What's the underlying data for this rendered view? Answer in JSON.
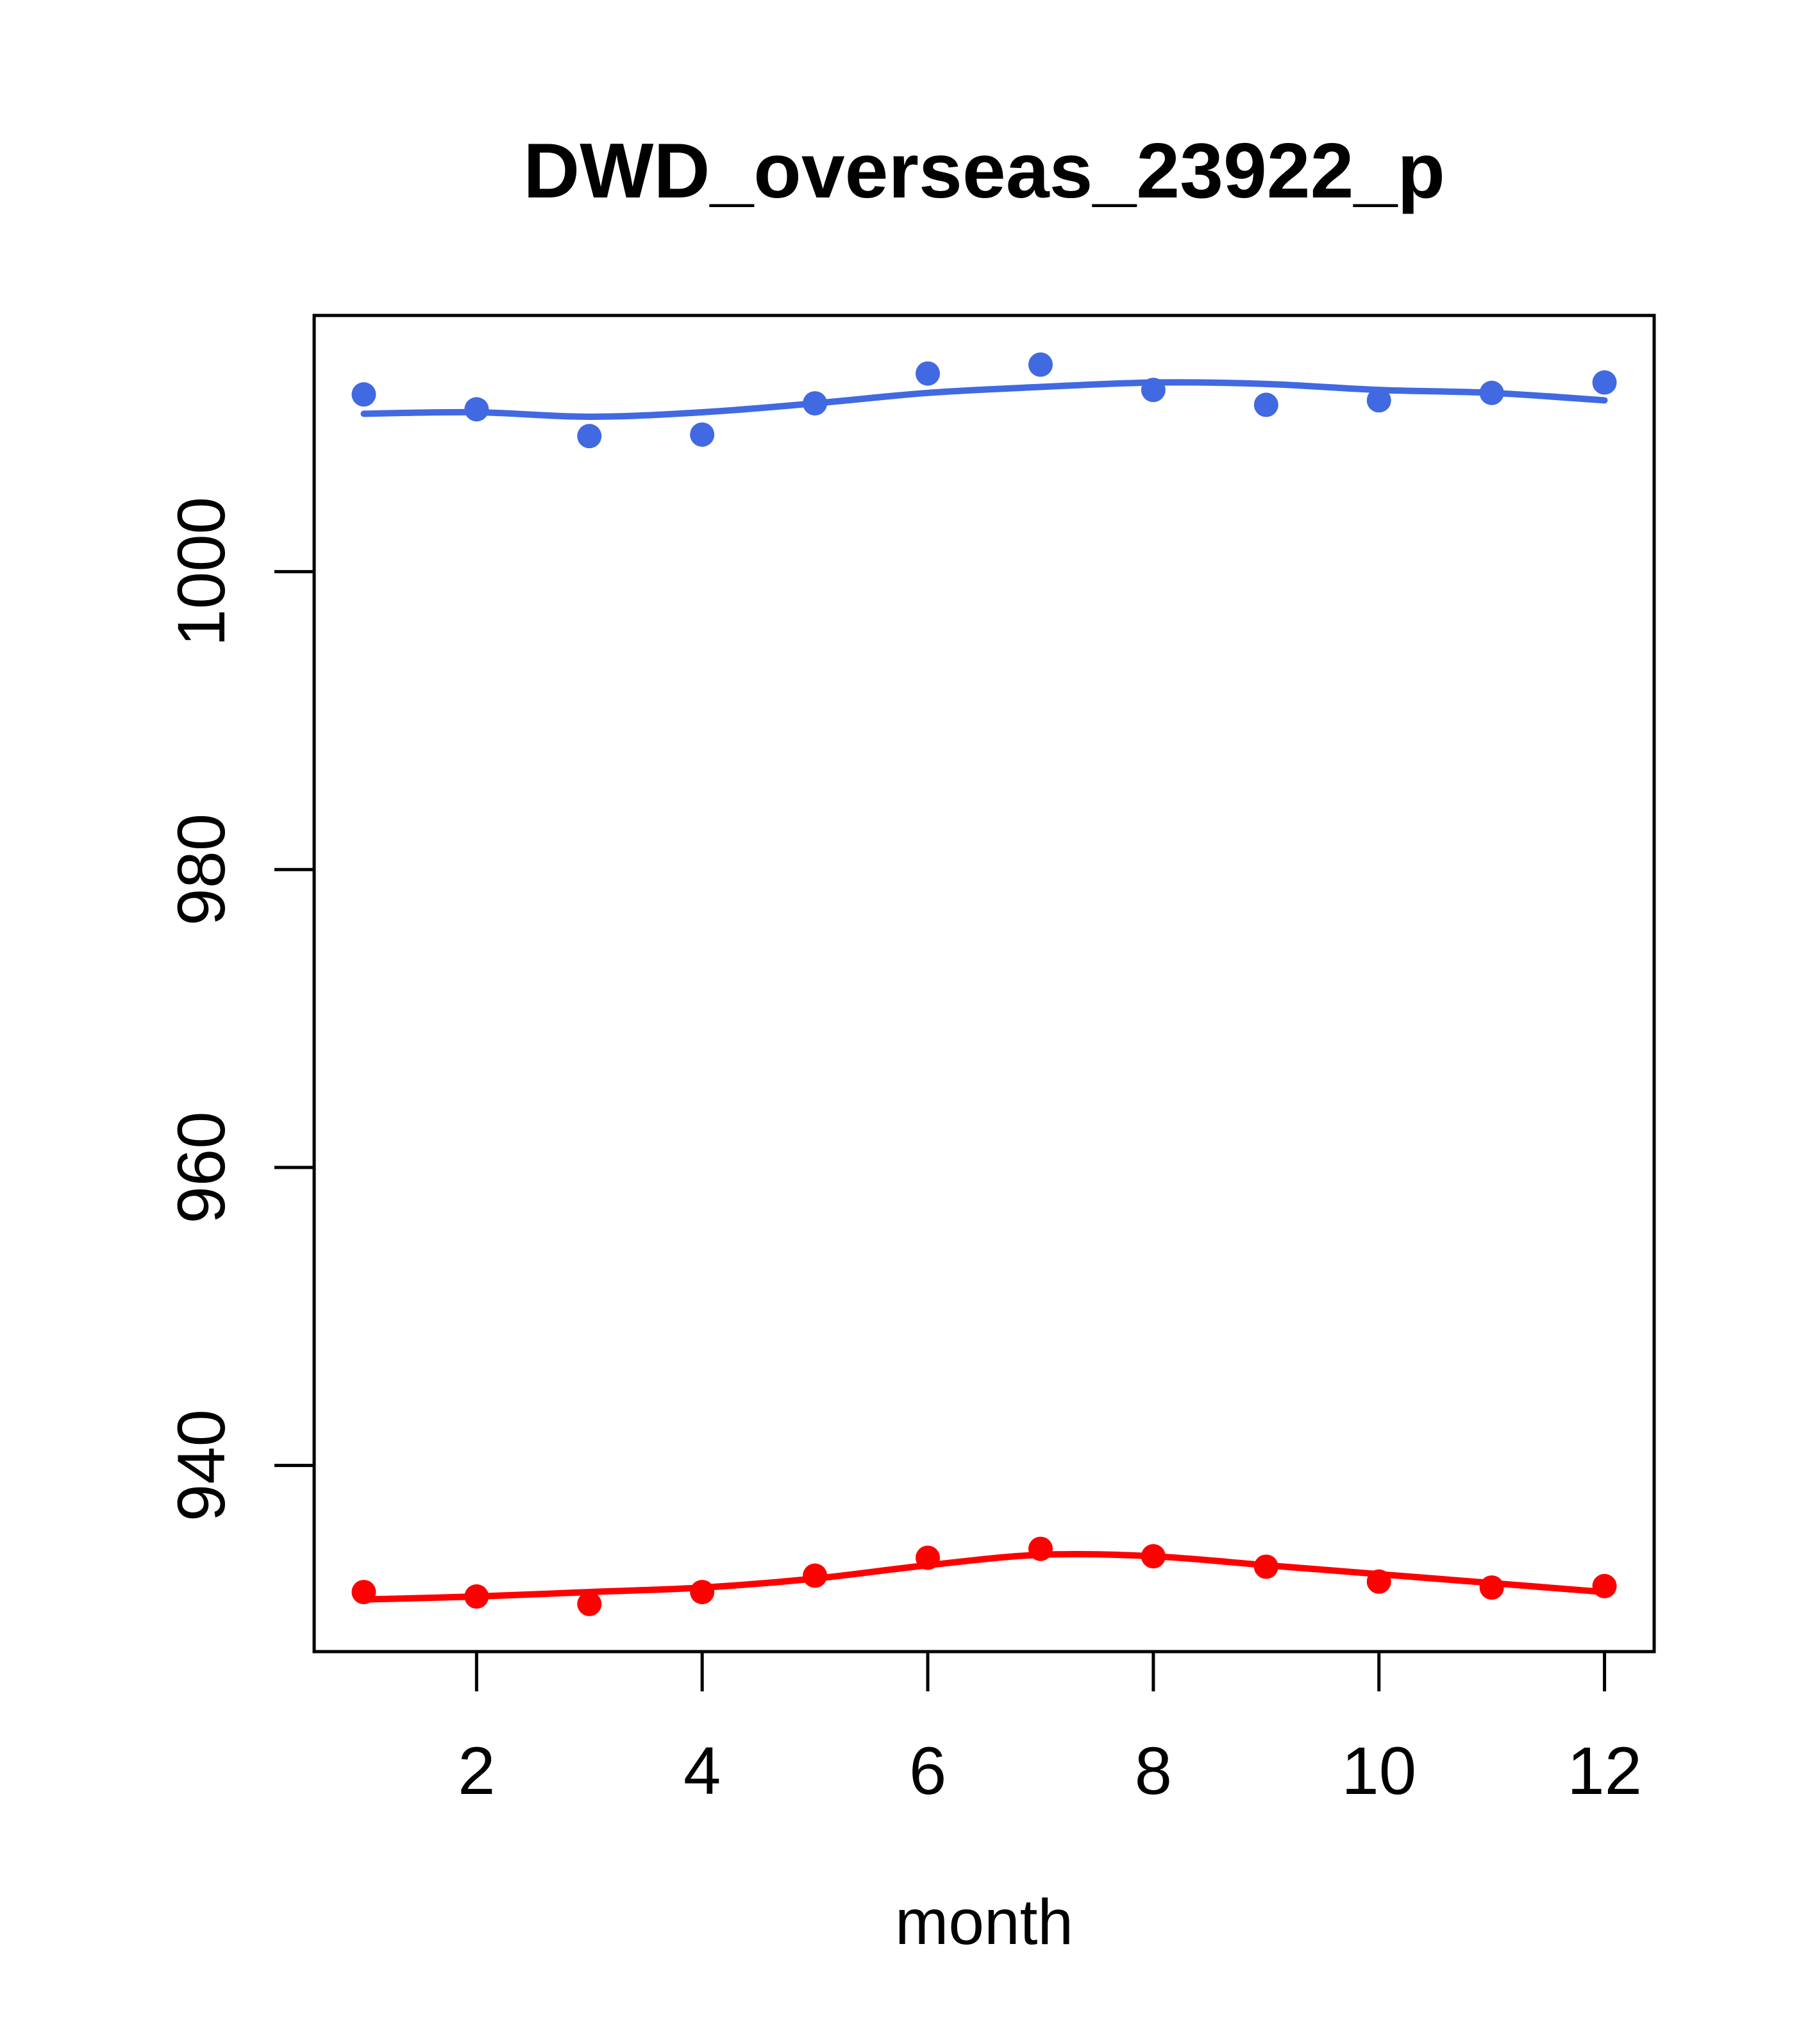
{
  "title": "DWD_overseas_23922_p",
  "x_axis": {
    "label": "month",
    "tick_labels": [
      "2",
      "4",
      "6",
      "8",
      "10",
      "12"
    ]
  },
  "y_axis": {
    "tick_labels": [
      "940",
      "960",
      "980",
      "1000"
    ]
  },
  "colors": {
    "blue_series": "#4169E1",
    "red_series": "#FF0000",
    "axis": "#000000",
    "background": "#FFFFFF"
  },
  "chart_data": {
    "type": "scatter",
    "title": "DWD_overseas_23922_p",
    "xlabel": "month",
    "ylabel": "",
    "x": [
      1,
      2,
      3,
      4,
      5,
      6,
      7,
      8,
      9,
      10,
      11,
      12
    ],
    "x_ticks": [
      2,
      4,
      6,
      8,
      10,
      12
    ],
    "y_ticks": [
      940,
      960,
      980,
      1000
    ],
    "xlim": [
      0.56,
      12.44
    ],
    "ylim": [
      927.5,
      1017.2
    ],
    "grid": false,
    "legend": "none",
    "series": [
      {
        "name": "blue points",
        "type": "scatter",
        "color": "#4169E1",
        "values": [
          1011.9,
          1010.9,
          1009.1,
          1009.2,
          1011.3,
          1013.3,
          1013.9,
          1012.2,
          1011.2,
          1011.5,
          1012.0,
          1012.7
        ]
      },
      {
        "name": "blue smooth line",
        "type": "line",
        "color": "#4169E1",
        "values": [
          1010.6,
          1010.7,
          1010.4,
          1010.7,
          1011.3,
          1012.0,
          1012.4,
          1012.7,
          1012.6,
          1012.2,
          1012.0,
          1011.5
        ]
      },
      {
        "name": "red points",
        "type": "scatter",
        "color": "#FF0000",
        "values": [
          931.5,
          931.2,
          930.7,
          931.5,
          932.6,
          933.8,
          934.4,
          933.9,
          933.2,
          932.2,
          931.8,
          931.9
        ]
      },
      {
        "name": "red smooth line",
        "type": "line",
        "color": "#FF0000",
        "values": [
          931.0,
          931.2,
          931.5,
          931.8,
          932.4,
          933.3,
          934.0,
          933.9,
          933.3,
          932.7,
          932.1,
          931.5
        ]
      }
    ]
  }
}
